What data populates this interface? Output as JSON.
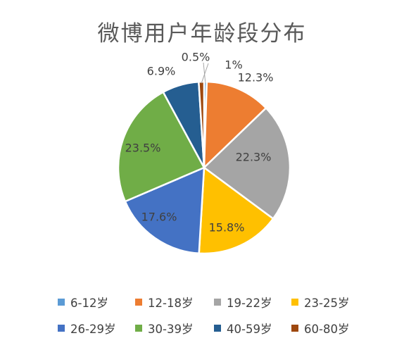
{
  "chart_data": {
    "type": "pie",
    "title": "微博用户年龄段分布",
    "categories": [
      "6-12岁",
      "12-18岁",
      "19-22岁",
      "23-25岁",
      "26-29岁",
      "30-39岁",
      "40-59岁",
      "60-80岁"
    ],
    "values": [
      0.5,
      12.3,
      22.3,
      15.8,
      17.6,
      23.5,
      6.9,
      1
    ],
    "data_labels": [
      "0.5%",
      "12.3%",
      "22.3%",
      "15.8%",
      "17.6%",
      "23.5%",
      "6.9%",
      "1%"
    ],
    "plot_order": [
      0,
      1,
      2,
      3,
      4,
      5,
      6,
      7
    ],
    "colors": [
      "#5B9BD5",
      "#ED7D31",
      "#A5A5A5",
      "#FFC000",
      "#4472C4",
      "#70AD47",
      "#255E91",
      "#9E480E"
    ],
    "legend_position": "bottom"
  }
}
